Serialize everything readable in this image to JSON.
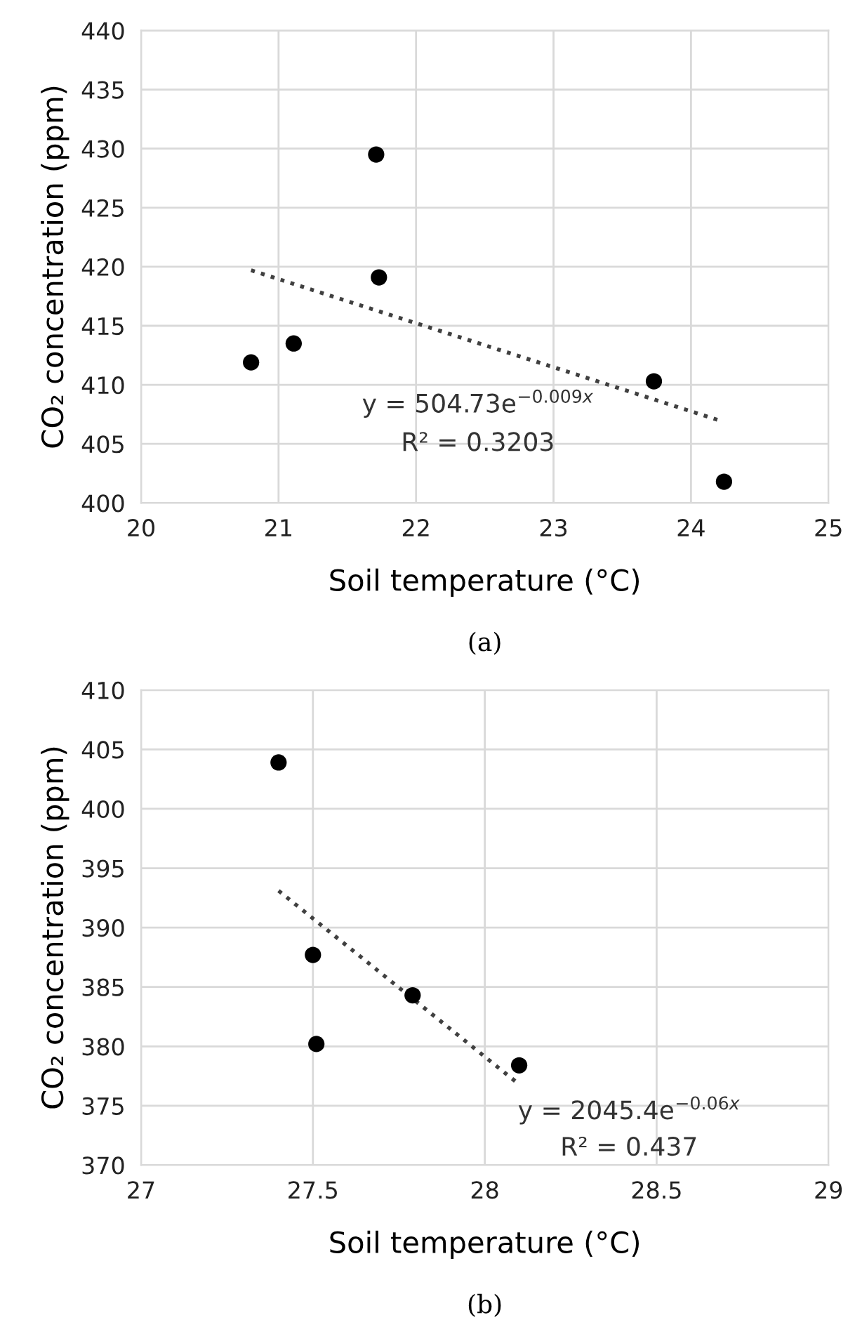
{
  "chart_data": [
    {
      "type": "scatter",
      "xlabel": "Soil temperature (°C)",
      "ylabel": "CO₂ concentration (ppm)",
      "xlim": [
        20,
        25
      ],
      "xticks": [
        20,
        21,
        22,
        23,
        24,
        25
      ],
      "ylim": [
        400,
        440
      ],
      "yticks": [
        400,
        405,
        410,
        415,
        420,
        425,
        430,
        435,
        440
      ],
      "grid": true,
      "marker": "circle",
      "series": [
        {
          "color": "#000000",
          "x": [
            20.8,
            21.11,
            21.71,
            21.73,
            23.73,
            24.24
          ],
          "values": [
            411.9,
            413.5,
            429.5,
            419.1,
            410.3,
            401.8
          ]
        },
        {
          "type": "line",
          "line_style": "dotted",
          "marker": "none",
          "color": "#404040",
          "x": [
            20.8,
            24.23
          ],
          "values": [
            419.7,
            406.9
          ]
        }
      ],
      "annotations": [
        "y = 504.73e$^{−0.009x}$",
        "R² = 0.3203",
        "(a)"
      ]
    },
    {
      "type": "scatter",
      "xlabel": "Soil temperature (°C)",
      "ylabel": "CO₂ concentration (ppm)",
      "xlim": [
        27,
        29
      ],
      "xticks": [
        27,
        27.5,
        28,
        28.5,
        29
      ],
      "ylim": [
        370,
        410
      ],
      "yticks": [
        370,
        375,
        380,
        385,
        390,
        395,
        400,
        405,
        410
      ],
      "grid": true,
      "marker": "circle",
      "series": [
        {
          "color": "#000000",
          "x": [
            27.4,
            27.5,
            27.51,
            27.79,
            28.1
          ],
          "values": [
            403.9,
            387.7,
            380.2,
            384.3,
            378.4
          ]
        },
        {
          "type": "line",
          "line_style": "dotted",
          "marker": "none",
          "color": "#404040",
          "x": [
            27.4,
            28.1
          ],
          "values": [
            393.1,
            376.8
          ]
        }
      ],
      "annotations": [
        "y = 2045.4e$^{−0.06x}$",
        "R² = 0.437",
        "(b)"
      ]
    }
  ]
}
